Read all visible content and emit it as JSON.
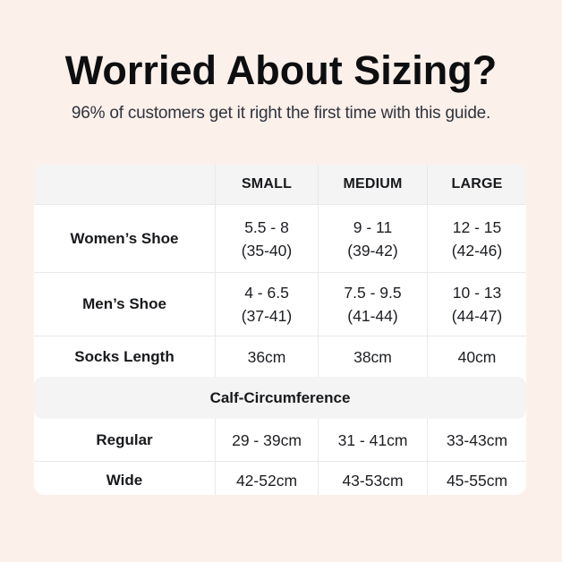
{
  "page": {
    "title": "Worried About Sizing?",
    "subtitle": "96% of customers get it right the first time with this guide.",
    "background_color": "#FBF0EA",
    "title_color": "#0D0E10",
    "subtitle_color": "#30343E"
  },
  "table": {
    "columns": [
      "SMALL",
      "MEDIUM",
      "LARGE"
    ],
    "rows": [
      {
        "label": "Women’s Shoe",
        "values": [
          [
            "5.5 - 8",
            "(35-40)"
          ],
          [
            "9 - 11",
            "(39-42)"
          ],
          [
            "12 - 15",
            "(42-46)"
          ]
        ]
      },
      {
        "label": "Men’s Shoe",
        "values": [
          [
            "4 - 6.5",
            "(37-41)"
          ],
          [
            "7.5 - 9.5",
            "(41-44)"
          ],
          [
            "10 - 13",
            "(44-47)"
          ]
        ]
      },
      {
        "label": "Socks Length",
        "values": [
          [
            "36cm"
          ],
          [
            "38cm"
          ],
          [
            "40cm"
          ]
        ]
      }
    ],
    "section_header": "Calf-Circumference",
    "section_rows": [
      {
        "label": "Regular",
        "values": [
          [
            "29 - 39cm"
          ],
          [
            "31 - 41cm"
          ],
          [
            "33-43cm"
          ]
        ]
      },
      {
        "label": "Wide",
        "values": [
          [
            "42-52cm"
          ],
          [
            "43-53cm"
          ],
          [
            "45-55cm"
          ]
        ]
      }
    ],
    "colors": {
      "header_bg": "#F4F4F4",
      "row_bg": "#FFFFFF",
      "border": "#E9E9E9",
      "text": "#17191C"
    }
  },
  "chart_data": {
    "type": "table",
    "title": "Worried About Sizing?",
    "subtitle": "96% of customers get it right the first time with this guide.",
    "columns": [
      "",
      "SMALL",
      "MEDIUM",
      "LARGE"
    ],
    "rows": [
      [
        "Women’s Shoe",
        "5.5 - 8 (35-40)",
        "9 - 11 (39-42)",
        "12 - 15 (42-46)"
      ],
      [
        "Men’s Shoe",
        "4 - 6.5 (37-41)",
        "7.5 - 9.5 (41-44)",
        "10 - 13 (44-47)"
      ],
      [
        "Socks Length",
        "36cm",
        "38cm",
        "40cm"
      ],
      [
        "Calf-Circumference",
        "",
        "",
        ""
      ],
      [
        "Regular",
        "29 - 39cm",
        "31 - 41cm",
        "33-43cm"
      ],
      [
        "Wide",
        "42-52cm",
        "43-53cm",
        "45-55cm"
      ]
    ],
    "layout": {
      "grid": false,
      "header_row_shaded": true,
      "section_band_shaded": true
    }
  }
}
